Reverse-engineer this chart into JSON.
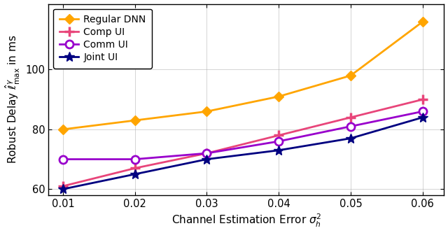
{
  "x": [
    0.01,
    0.02,
    0.03,
    0.04,
    0.05,
    0.06
  ],
  "regular_dnn": [
    80,
    83,
    86,
    91,
    98,
    116
  ],
  "comp_ui": [
    61,
    67,
    72,
    78,
    84,
    90
  ],
  "comm_ui": [
    70,
    70,
    72,
    76,
    81,
    86
  ],
  "joint_ui": [
    60,
    65,
    70,
    73,
    77,
    84
  ],
  "colors": {
    "regular_dnn": "#FFA500",
    "comp_ui": "#E8457A",
    "comm_ui": "#9900CC",
    "joint_ui": "#000080"
  },
  "xlabel": "Channel Estimation Error $\\sigma_h^2$",
  "ylabel": "Robust Delay $\\hat{\\ell}^\\gamma_{\\max}$ in ms",
  "ylim": [
    58,
    122
  ],
  "yticks": [
    60,
    80,
    100
  ],
  "xlim": [
    0.008,
    0.063
  ],
  "xticks": [
    0.01,
    0.02,
    0.03,
    0.04,
    0.05,
    0.06
  ],
  "legend_labels": [
    "Regular DNN",
    "Comp UI",
    "Comm UI",
    "Joint UI"
  ]
}
